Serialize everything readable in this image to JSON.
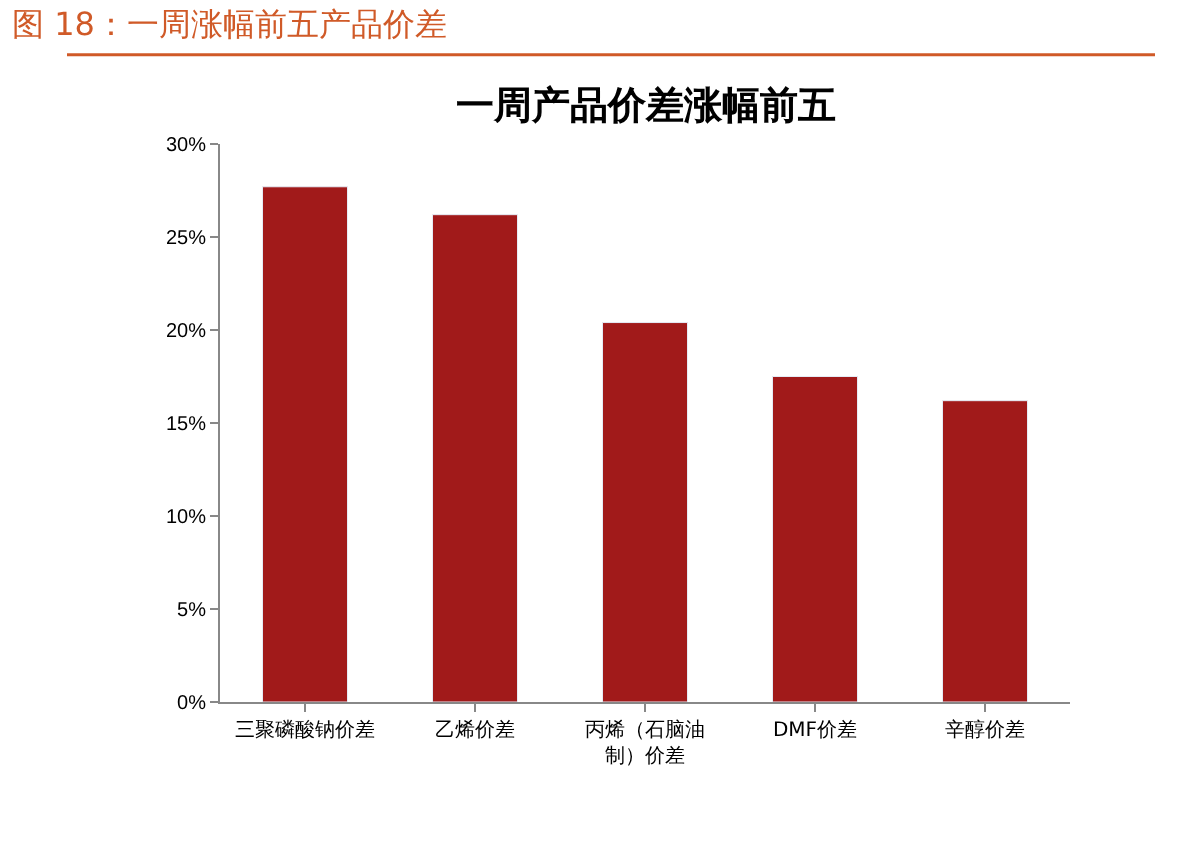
{
  "chart_data": {
    "type": "bar",
    "title": "图 18：一周涨幅前五产品价差",
    "subtitle": "一周产品价差涨幅前五",
    "categories": [
      "三聚磷酸钠价差",
      "乙烯价差",
      "丙烯（石脑油制）价差",
      "DMF价差",
      "辛醇价差"
    ],
    "values": [
      27.7,
      26.2,
      20.4,
      17.5,
      16.2
    ],
    "color": "#a11a1a",
    "ylim": [
      0,
      30
    ],
    "yticks": [
      {
        "value": 0,
        "label": "0%"
      },
      {
        "value": 5,
        "label": "5%"
      },
      {
        "value": 10,
        "label": "10%"
      },
      {
        "value": 15,
        "label": "15%"
      },
      {
        "value": 20,
        "label": "20%"
      },
      {
        "value": 25,
        "label": "25%"
      },
      {
        "value": 30,
        "label": "30%"
      }
    ]
  }
}
